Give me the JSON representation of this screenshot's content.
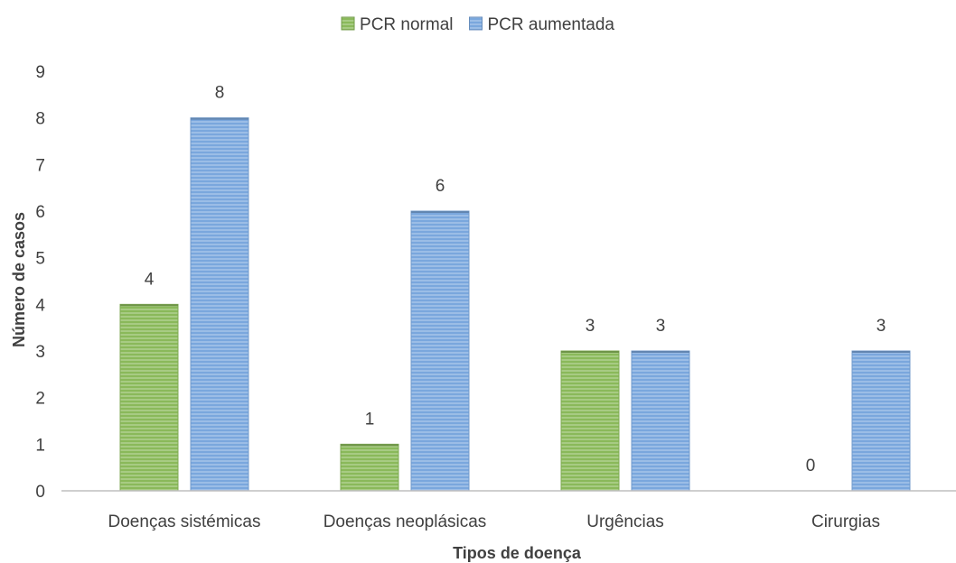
{
  "chart_data": {
    "type": "bar",
    "categories": [
      "Doenças sistémicas",
      "Doenças neoplásicas",
      "Urgências",
      "Cirurgias"
    ],
    "series": [
      {
        "name": "PCR normal",
        "values": [
          4,
          1,
          3,
          0
        ],
        "color": "#8ab95a"
      },
      {
        "name": "PCR aumentada",
        "values": [
          8,
          6,
          3,
          3
        ],
        "color": "#7aa7dd"
      }
    ],
    "xlabel": "Tipos de doença",
    "ylabel": "Número de casos",
    "ylim": [
      0,
      9
    ],
    "yticks": [
      0,
      1,
      2,
      3,
      4,
      5,
      6,
      7,
      8,
      9
    ],
    "data_labels": true,
    "grid": false,
    "legend_position": "top-center",
    "bar_pattern": "horizontal-stripes"
  }
}
